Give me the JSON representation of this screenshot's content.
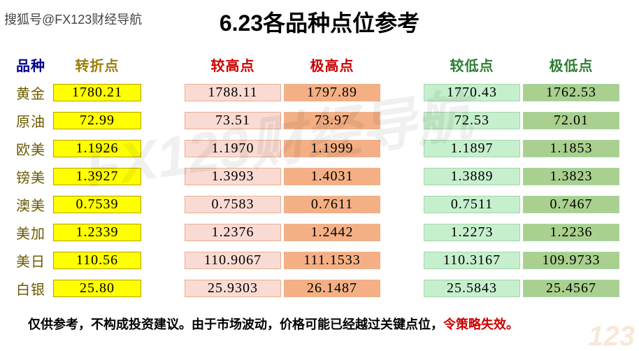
{
  "source_text": "搜狐号@FX123财经导航",
  "title": "6.23各品种点位参考",
  "watermark_text": "FX123财经导航",
  "corner_watermark": "123",
  "headers": {
    "c0": "品种",
    "c1": "转折点",
    "c2": "较高点",
    "c3": "极高点",
    "c4": "较低点",
    "c5": "极低点"
  },
  "colors": {
    "c1_bg": "#ffff00",
    "c2_bg": "#fadbd3",
    "c3_bg": "#f4b084",
    "c4_bg": "#c6efce",
    "c5_bg": "#a9d08e",
    "text_dark": "#000000"
  },
  "rows": [
    {
      "name": "黄金",
      "pivot": "1780.21",
      "hi1": "1788.11",
      "hi2": "1797.89",
      "lo1": "1770.43",
      "lo2": "1762.53"
    },
    {
      "name": "原油",
      "pivot": "72.99",
      "hi1": "73.51",
      "hi2": "73.97",
      "lo1": "72.53",
      "lo2": "72.01"
    },
    {
      "name": "欧美",
      "pivot": "1.1926",
      "hi1": "1.1970",
      "hi2": "1.1999",
      "lo1": "1.1897",
      "lo2": "1.1853"
    },
    {
      "name": "镑美",
      "pivot": "1.3927",
      "hi1": "1.3993",
      "hi2": "1.4031",
      "lo1": "1.3889",
      "lo2": "1.3823"
    },
    {
      "name": "澳美",
      "pivot": "0.7539",
      "hi1": "0.7583",
      "hi2": "0.7611",
      "lo1": "0.7511",
      "lo2": "0.7467"
    },
    {
      "name": "美加",
      "pivot": "1.2339",
      "hi1": "1.2376",
      "hi2": "1.2442",
      "lo1": "1.2273",
      "lo2": "1.2236"
    },
    {
      "name": "美日",
      "pivot": "110.56",
      "hi1": "110.9067",
      "hi2": "111.1533",
      "lo1": "110.3167",
      "lo2": "109.9733"
    },
    {
      "name": "白银",
      "pivot": "25.80",
      "hi1": "25.9303",
      "hi2": "26.1487",
      "lo1": "25.5843",
      "lo2": "25.4567"
    }
  ],
  "disclaimer_main": "仅供参考，不构成投资建议。由于市场波动，价格可能已经越过关键点位，",
  "disclaimer_warn": "令策略失效。"
}
